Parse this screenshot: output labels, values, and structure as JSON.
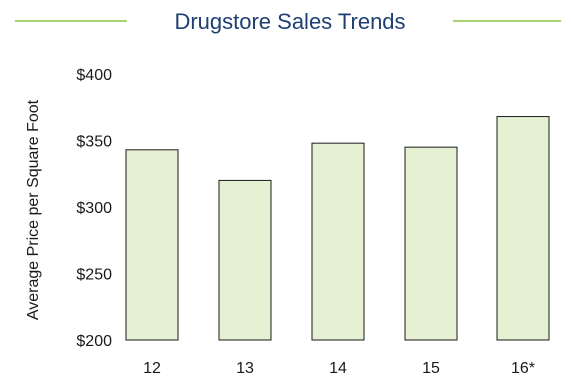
{
  "chart_data": {
    "type": "bar",
    "title": "Drugstore Sales Trends",
    "ylabel": "Average Price per Square Foot",
    "xlabel": "",
    "categories": [
      "12",
      "13",
      "14",
      "15",
      "16*"
    ],
    "values": [
      343,
      320,
      348,
      345,
      368
    ],
    "ylim": [
      200,
      400
    ],
    "yticks": [
      200,
      250,
      300,
      350,
      400
    ],
    "ytick_labels": [
      "$200",
      "$250",
      "$300",
      "$350",
      "$400"
    ],
    "grid": false,
    "legend": "none"
  },
  "colors": {
    "title": "#1f3f73",
    "title_rule": "#8ac43f",
    "bar_fill": "#e6f0d3",
    "bar_stroke": "#1a1a1a"
  }
}
